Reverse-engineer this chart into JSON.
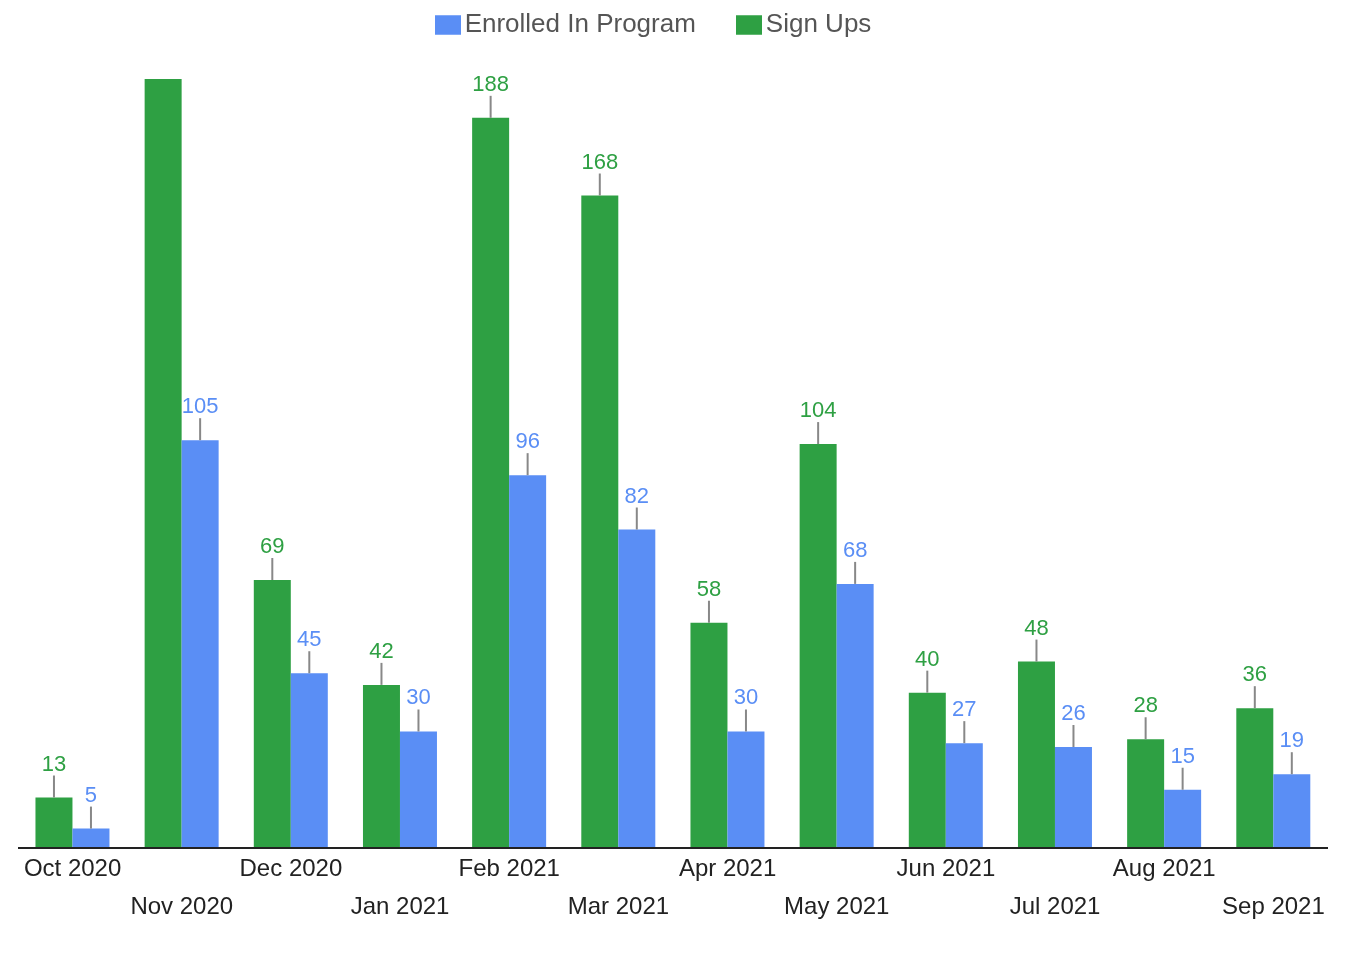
{
  "chart_data": {
    "type": "bar",
    "categories": [
      "Oct 2020",
      "Nov 2020",
      "Dec 2020",
      "Jan 2021",
      "Feb 2021",
      "Mar 2021",
      "Apr 2021",
      "May 2021",
      "Jun 2021",
      "Jul 2021",
      "Aug 2021",
      "Sep 2021"
    ],
    "series": [
      {
        "name": "Sign Ups",
        "color": "#2ea043",
        "values": [
          13,
          198,
          69,
          42,
          188,
          168,
          58,
          104,
          40,
          48,
          28,
          36
        ],
        "value_labels": [
          "13",
          null,
          "69",
          "42",
          "188",
          "168",
          "58",
          "104",
          "40",
          "48",
          "28",
          "36"
        ]
      },
      {
        "name": "Enrolled In Program",
        "color": "#5a8ef5",
        "values": [
          5,
          105,
          45,
          30,
          96,
          82,
          30,
          68,
          27,
          26,
          15,
          19
        ],
        "value_labels": [
          "5",
          "105",
          "45",
          "30",
          "96",
          "82",
          "30",
          "68",
          "27",
          "26",
          "15",
          "19"
        ]
      }
    ],
    "legend": "top"
  }
}
